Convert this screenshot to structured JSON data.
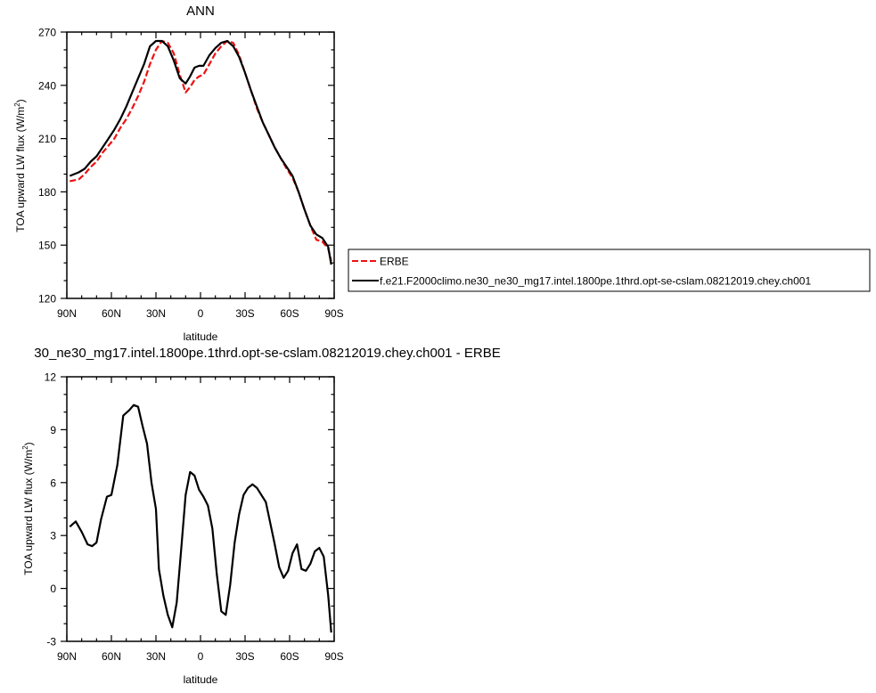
{
  "chart_data": [
    {
      "type": "line",
      "title": "ANN",
      "xlabel": "latitude",
      "ylabel": "TOA upward LW flux",
      "ylabel_unit_prefix": "(W/m",
      "ylabel_unit_exp": "2",
      "ylabel_unit_suffix": ")",
      "xlim": [
        -90,
        90
      ],
      "ylim": [
        120,
        270
      ],
      "xticks": [
        -90,
        -60,
        -30,
        0,
        30,
        60,
        90
      ],
      "xtick_labels": [
        "90N",
        "60N",
        "30N",
        "0",
        "30S",
        "60S",
        "90S"
      ],
      "yticks": [
        120,
        150,
        180,
        210,
        240,
        270
      ],
      "ytick_labels": [
        "120",
        "150",
        "180",
        "210",
        "240",
        "270"
      ],
      "grid": false,
      "legend_position": "right-outside",
      "series": [
        {
          "name": "ERBE",
          "color": "#ee1111",
          "dash": "dashed",
          "x": [
            -88,
            -82,
            -78,
            -74,
            -70,
            -66,
            -62,
            -58,
            -54,
            -50,
            -46,
            -42,
            -38,
            -34,
            -30,
            -26,
            -22,
            -18,
            -14,
            -10,
            -7,
            -4,
            -1,
            2,
            6,
            10,
            14,
            18,
            22,
            26,
            30,
            34,
            38,
            42,
            46,
            50,
            54,
            58,
            62,
            66,
            70,
            74,
            78,
            82,
            86,
            88
          ],
          "y": [
            186,
            187,
            190,
            194,
            197,
            202,
            206,
            210,
            216,
            221,
            227,
            234,
            242,
            252,
            260,
            265,
            264,
            258,
            246,
            236,
            239,
            243,
            245,
            246,
            252,
            258,
            262,
            265,
            264,
            257,
            247,
            237,
            227,
            219,
            212,
            205,
            199,
            193,
            188,
            180,
            170,
            161,
            153,
            152,
            148,
            141
          ]
        },
        {
          "name": "f.e21.F2000climo.ne30_ne30_mg17.intel.1800pe.1thrd.opt-se-cslam.08212019.chey.ch001",
          "color": "#000000",
          "dash": "solid",
          "x": [
            -88,
            -82,
            -78,
            -74,
            -70,
            -66,
            -62,
            -58,
            -54,
            -50,
            -46,
            -42,
            -38,
            -34,
            -30,
            -26,
            -22,
            -18,
            -14,
            -10,
            -7,
            -4,
            -1,
            2,
            6,
            10,
            14,
            18,
            22,
            26,
            30,
            34,
            38,
            42,
            46,
            50,
            54,
            58,
            62,
            66,
            70,
            74,
            78,
            82,
            86,
            88
          ],
          "y": [
            189,
            191,
            193,
            197,
            200,
            205,
            210,
            215,
            221,
            228,
            236,
            244,
            252,
            262,
            265,
            265,
            262,
            254,
            244,
            241,
            245,
            250,
            251,
            251,
            257,
            261,
            264,
            265,
            262,
            256,
            247,
            237,
            228,
            219,
            212,
            205,
            199,
            194,
            189,
            180,
            170,
            161,
            156,
            154,
            149,
            139
          ]
        }
      ]
    },
    {
      "type": "line",
      "title": "30_ne30_mg17.intel.1800pe.1thrd.opt-se-cslam.08212019.chey.ch001 - ERBE",
      "xlabel": "latitude",
      "ylabel": "TOA upward LW flux",
      "ylabel_unit_prefix": "(W/m",
      "ylabel_unit_exp": "2",
      "ylabel_unit_suffix": ")",
      "xlim": [
        -90,
        90
      ],
      "ylim": [
        -3,
        12
      ],
      "xticks": [
        -90,
        -60,
        -30,
        0,
        30,
        60,
        90
      ],
      "xtick_labels": [
        "90N",
        "60N",
        "30N",
        "0",
        "30S",
        "60S",
        "90S"
      ],
      "yticks": [
        -3,
        0,
        3,
        6,
        9,
        12
      ],
      "ytick_labels": [
        "-3",
        "0",
        "3",
        "6",
        "9",
        "12"
      ],
      "grid": false,
      "series": [
        {
          "color": "#000000",
          "dash": "solid",
          "x": [
            -88,
            -84,
            -80,
            -76,
            -73,
            -70,
            -67,
            -63,
            -60,
            -56,
            -52,
            -48,
            -45,
            -42,
            -39,
            -36,
            -33,
            -30,
            -28,
            -25,
            -22,
            -19,
            -16,
            -13,
            -10,
            -7,
            -4,
            -1,
            2,
            5,
            8,
            11,
            14,
            17,
            20,
            23,
            26,
            29,
            32,
            35,
            38,
            41,
            44,
            47,
            50,
            53,
            56,
            59,
            62,
            65,
            68,
            71,
            74,
            77,
            80,
            83,
            86,
            88
          ],
          "y": [
            3.5,
            3.8,
            3.2,
            2.5,
            2.4,
            2.6,
            3.9,
            5.2,
            5.3,
            7.0,
            9.8,
            10.1,
            10.4,
            10.3,
            9.2,
            8.2,
            6.0,
            4.5,
            1.1,
            -0.4,
            -1.5,
            -2.2,
            -0.8,
            2.2,
            5.3,
            6.6,
            6.4,
            5.6,
            5.2,
            4.7,
            3.4,
            0.8,
            -1.3,
            -1.5,
            0.2,
            2.6,
            4.2,
            5.3,
            5.7,
            5.9,
            5.7,
            5.3,
            4.9,
            3.7,
            2.5,
            1.2,
            0.6,
            1.0,
            2.0,
            2.5,
            1.1,
            1.0,
            1.4,
            2.1,
            2.3,
            1.8,
            -0.4,
            -2.5
          ]
        }
      ]
    }
  ]
}
